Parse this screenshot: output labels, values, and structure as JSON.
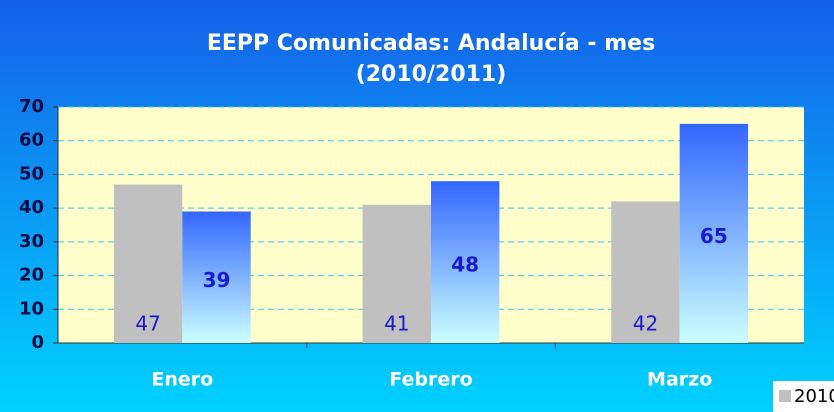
{
  "chart_data": {
    "type": "bar",
    "title": [
      "EEPP Comunicadas: Andalucía - mes",
      "(2010/2011)"
    ],
    "categories": [
      "Enero",
      "Febrero",
      "Marzo"
    ],
    "series": [
      {
        "name": "2010",
        "color": "#c0c0c0",
        "values": [
          47,
          41,
          42
        ]
      },
      {
        "color": "#3366ff",
        "values": [
          39,
          48,
          65
        ]
      }
    ],
    "ylim": [
      0,
      70
    ],
    "yticks": [
      0,
      10,
      20,
      30,
      40,
      50,
      60,
      70
    ],
    "grid": true,
    "legend": "bottom-right"
  }
}
